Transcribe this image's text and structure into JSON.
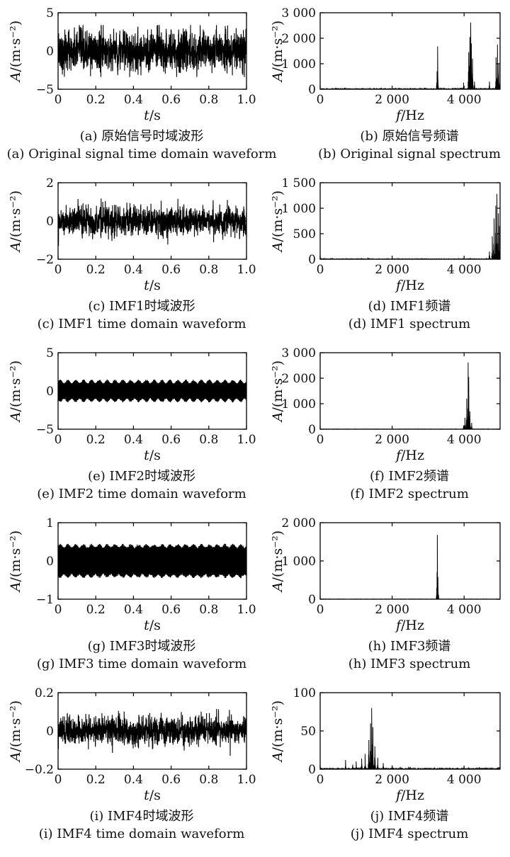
{
  "chart_data": [
    {
      "id": "a",
      "type": "line",
      "domain": "time",
      "caption_zh": "(a) 原始信号时域波形",
      "caption_en": "(a) Original signal time domain waveform",
      "xlabel_var": "t",
      "xlabel_unit": "s",
      "ylabel_var": "A",
      "ylabel_unit": "(m·s⁻²)",
      "xlim": [
        0,
        1.0
      ],
      "ylim": [
        -5,
        5
      ],
      "xticks": [
        0,
        0.2,
        0.4,
        0.6,
        0.8,
        1.0
      ],
      "xtick_labels": [
        "0",
        "0.2",
        "0.4",
        "0.6",
        "0.8",
        "1.0"
      ],
      "yticks": [
        -5,
        0,
        5
      ],
      "ytick_labels": [
        "−5",
        "0",
        "5"
      ],
      "signal": {
        "envelope": 2.7,
        "peak": 3.4,
        "beat_cycles": 0,
        "beat_depth": 0
      }
    },
    {
      "id": "b",
      "type": "line",
      "domain": "freq",
      "caption_zh": "(b) 原始信号频谱",
      "caption_en": "(b) Original signal spectrum",
      "xlabel_var": "f",
      "xlabel_unit": "Hz",
      "ylabel_var": "A",
      "ylabel_unit": "(m·s⁻²)",
      "xlim": [
        0,
        5000
      ],
      "ylim": [
        0,
        3000
      ],
      "xticks": [
        0,
        2000,
        4000
      ],
      "xtick_labels": [
        "0",
        "2 000",
        "4 000"
      ],
      "yticks": [
        0,
        1000,
        2000,
        3000
      ],
      "ytick_labels": [
        "0",
        "1 000",
        "2 000",
        "3 000"
      ],
      "peaks": [
        [
          700,
          60
        ],
        [
          1400,
          40
        ],
        [
          2600,
          35
        ],
        [
          3260,
          1680
        ],
        [
          3250,
          700
        ],
        [
          3980,
          260
        ],
        [
          4130,
          1450
        ],
        [
          4160,
          2050
        ],
        [
          4180,
          2620
        ],
        [
          4200,
          1800
        ],
        [
          4230,
          1200
        ],
        [
          4290,
          300
        ],
        [
          4700,
          300
        ],
        [
          4890,
          1250
        ],
        [
          4930,
          1750
        ],
        [
          4960,
          1000
        ],
        [
          5000,
          800
        ]
      ],
      "noise": 25
    },
    {
      "id": "c",
      "type": "line",
      "domain": "time",
      "caption_zh": "(c) IMF1时域波形",
      "caption_en": "(c) IMF1 time domain waveform",
      "xlabel_var": "t",
      "xlabel_unit": "s",
      "ylabel_var": "A",
      "ylabel_unit": "(m·s⁻²)",
      "xlim": [
        0,
        1.0
      ],
      "ylim": [
        -2,
        2
      ],
      "xticks": [
        0,
        0.2,
        0.4,
        0.6,
        0.8,
        1.0
      ],
      "xtick_labels": [
        "0",
        "0.2",
        "0.4",
        "0.6",
        "0.8",
        "1.0"
      ],
      "yticks": [
        -2,
        0,
        2
      ],
      "ytick_labels": [
        "−2",
        "0",
        "2"
      ],
      "signal": {
        "envelope": 0.75,
        "peak": 1.3,
        "beat_cycles": 0,
        "beat_depth": 0
      }
    },
    {
      "id": "d",
      "type": "line",
      "domain": "freq",
      "caption_zh": "(d) IMF1频谱",
      "caption_en": "(d) IMF1 spectrum",
      "xlabel_var": "f",
      "xlabel_unit": "Hz",
      "ylabel_var": "A",
      "ylabel_unit": "(m·s⁻²)",
      "xlim": [
        0,
        5000
      ],
      "ylim": [
        0,
        1500
      ],
      "xticks": [
        0,
        2000,
        4000
      ],
      "xtick_labels": [
        "0",
        "2 000",
        "4 000"
      ],
      "yticks": [
        0,
        500,
        1000,
        1500
      ],
      "ytick_labels": [
        "0",
        "500",
        "1 000",
        "1 500"
      ],
      "peaks": [
        [
          4700,
          150
        ],
        [
          4780,
          450
        ],
        [
          4830,
          800
        ],
        [
          4880,
          1050
        ],
        [
          4910,
          1280
        ],
        [
          4950,
          900
        ],
        [
          4980,
          650
        ],
        [
          5000,
          500
        ]
      ],
      "noise": 6
    },
    {
      "id": "e",
      "type": "line",
      "domain": "time",
      "caption_zh": "(e) IMF2时域波形",
      "caption_en": "(e) IMF2 time domain waveform",
      "xlabel_var": "t",
      "xlabel_unit": "s",
      "ylabel_var": "A",
      "ylabel_unit": "(m·s⁻²)",
      "xlim": [
        0,
        1.0
      ],
      "ylim": [
        -5,
        5
      ],
      "xticks": [
        0,
        0.2,
        0.4,
        0.6,
        0.8,
        1.0
      ],
      "xtick_labels": [
        "0",
        "0.2",
        "0.4",
        "0.6",
        "0.8",
        "1.0"
      ],
      "yticks": [
        -5,
        0,
        5
      ],
      "ytick_labels": [
        "−5",
        "0",
        "5"
      ],
      "signal": {
        "envelope": 1.5,
        "peak": 2.0,
        "beat_cycles": 24,
        "beat_depth": 0.3
      }
    },
    {
      "id": "f",
      "type": "line",
      "domain": "freq",
      "caption_zh": "(f) IMF2频谱",
      "caption_en": "(f) IMF2 spectrum",
      "xlabel_var": "f",
      "xlabel_unit": "Hz",
      "ylabel_var": "A",
      "ylabel_unit": "(m·s⁻²)",
      "xlim": [
        0,
        5000
      ],
      "ylim": [
        0,
        3000
      ],
      "xticks": [
        0,
        2000,
        4000
      ],
      "xtick_labels": [
        "0",
        "2 000",
        "4 000"
      ],
      "yticks": [
        0,
        1000,
        2000,
        3000
      ],
      "ytick_labels": [
        "0",
        "1 000",
        "2 000",
        "3 000"
      ],
      "peaks": [
        [
          3980,
          150
        ],
        [
          4020,
          450
        ],
        [
          4070,
          1200
        ],
        [
          4110,
          2620
        ],
        [
          4130,
          2050
        ],
        [
          4160,
          700
        ],
        [
          4210,
          250
        ]
      ],
      "noise": 4
    },
    {
      "id": "g",
      "type": "line",
      "domain": "time",
      "caption_zh": "(g) IMF3时域波形",
      "caption_en": "(g) IMF3 time domain waveform",
      "xlabel_var": "t",
      "xlabel_unit": "s",
      "ylabel_var": "A",
      "ylabel_unit": "(m·s⁻²)",
      "xlim": [
        0,
        1.0
      ],
      "ylim": [
        -1,
        1
      ],
      "xticks": [
        0,
        0.2,
        0.4,
        0.6,
        0.8,
        1.0
      ],
      "xtick_labels": [
        "0",
        "0.2",
        "0.4",
        "0.6",
        "0.8",
        "1.0"
      ],
      "yticks": [
        -1,
        0,
        1
      ],
      "ytick_labels": [
        "−1",
        "0",
        "1"
      ],
      "signal": {
        "envelope": 0.45,
        "peak": 0.5,
        "beat_cycles": 24,
        "beat_depth": 0.18
      }
    },
    {
      "id": "h",
      "type": "line",
      "domain": "freq",
      "caption_zh": "(h) IMF3频谱",
      "caption_en": "(h) IMF3 spectrum",
      "xlabel_var": "f",
      "xlabel_unit": "Hz",
      "ylabel_var": "A",
      "ylabel_unit": "(m·s⁻²)",
      "xlim": [
        0,
        5000
      ],
      "ylim": [
        0,
        2000
      ],
      "xticks": [
        0,
        2000,
        4000
      ],
      "xtick_labels": [
        "0",
        "2 000",
        "4 000"
      ],
      "yticks": [
        0,
        1000,
        2000
      ],
      "ytick_labels": [
        "0",
        "1 000",
        "2 000"
      ],
      "peaks": [
        [
          3240,
          300
        ],
        [
          3255,
          1680
        ],
        [
          3270,
          580
        ],
        [
          3290,
          120
        ]
      ],
      "noise": 2
    },
    {
      "id": "i",
      "type": "line",
      "domain": "time",
      "caption_zh": "(i) IMF4时域波形",
      "caption_en": "(i) IMF4 time domain waveform",
      "xlabel_var": "t",
      "xlabel_unit": "s",
      "ylabel_var": "A",
      "ylabel_unit": "(m·s⁻²)",
      "xlim": [
        0,
        1.0
      ],
      "ylim": [
        -0.2,
        0.2
      ],
      "xticks": [
        0,
        0.2,
        0.4,
        0.6,
        0.8,
        1.0
      ],
      "xtick_labels": [
        "0",
        "0.2",
        "0.4",
        "0.6",
        "0.8",
        "1.0"
      ],
      "yticks": [
        -0.2,
        0,
        0.2
      ],
      "ytick_labels": [
        "−0.2",
        "0",
        "0.2"
      ],
      "signal": {
        "envelope": 0.075,
        "peak": 0.145,
        "beat_cycles": 0,
        "beat_depth": 0
      }
    },
    {
      "id": "j",
      "type": "line",
      "domain": "freq",
      "caption_zh": "(j) IMF4频谱",
      "caption_en": "(j) IMF4 spectrum",
      "xlabel_var": "f",
      "xlabel_unit": "Hz",
      "ylabel_var": "A",
      "ylabel_unit": "(m·s⁻²)",
      "xlim": [
        0,
        5000
      ],
      "ylim": [
        0,
        100
      ],
      "xticks": [
        0,
        2000,
        4000
      ],
      "xtick_labels": [
        "0",
        "2 000",
        "4 000"
      ],
      "yticks": [
        0,
        50,
        100
      ],
      "ytick_labels": [
        "0",
        "50",
        "100"
      ],
      "peaks": [
        [
          700,
          12
        ],
        [
          900,
          6
        ],
        [
          1000,
          10
        ],
        [
          1150,
          14
        ],
        [
          1250,
          20
        ],
        [
          1350,
          38
        ],
        [
          1400,
          60
        ],
        [
          1430,
          80
        ],
        [
          1460,
          55
        ],
        [
          1520,
          30
        ],
        [
          1600,
          15
        ],
        [
          1750,
          8
        ],
        [
          2000,
          5
        ],
        [
          2500,
          3
        ]
      ],
      "noise": 1.5
    }
  ]
}
